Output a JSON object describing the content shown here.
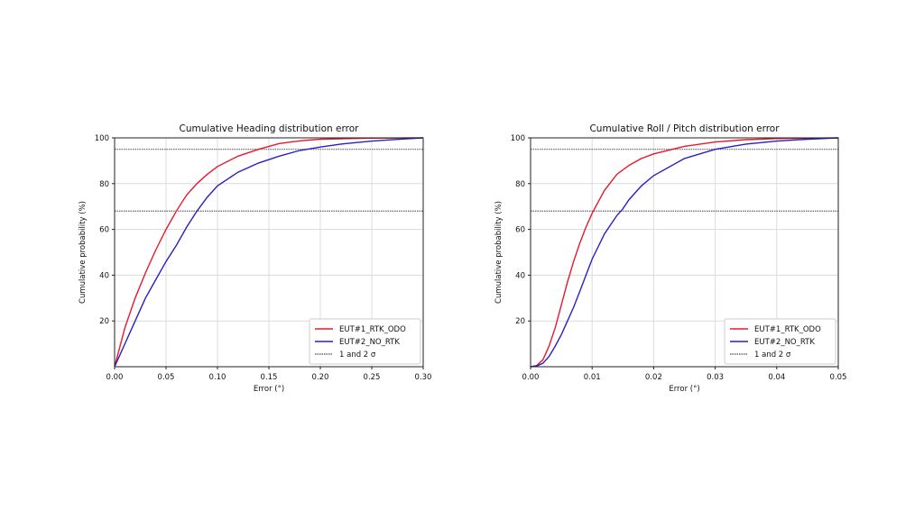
{
  "chart_data": [
    {
      "type": "line",
      "title": "Cumulative Heading distribution error",
      "xlabel": "Error (°)",
      "ylabel": "Cumulative probability (%)",
      "xlim": [
        0,
        0.3
      ],
      "ylim": [
        0,
        100
      ],
      "xticks": [
        "0.00",
        "0.05",
        "0.10",
        "0.15",
        "0.20",
        "0.25",
        "0.30"
      ],
      "xtick_values": [
        0,
        0.05,
        0.1,
        0.15,
        0.2,
        0.25,
        0.3
      ],
      "yticks": [
        "20",
        "40",
        "60",
        "80",
        "100"
      ],
      "ytick_values": [
        20,
        40,
        60,
        80,
        100
      ],
      "grid": true,
      "legend_position": "bottom-right",
      "series": [
        {
          "name": "EUT#1_RTK_ODO",
          "color": "#e8182c",
          "x": [
            0,
            0.01,
            0.02,
            0.03,
            0.04,
            0.05,
            0.06,
            0.07,
            0.08,
            0.09,
            0.1,
            0.12,
            0.14,
            0.16,
            0.18,
            0.2,
            0.25,
            0.3
          ],
          "y": [
            0,
            17,
            30,
            41,
            51,
            60,
            68,
            75,
            80,
            84,
            87.5,
            92,
            95,
            97.5,
            98.7,
            99.4,
            99.9,
            100
          ]
        },
        {
          "name": "EUT#2_NO_RTK",
          "color": "#2a1fc4",
          "x": [
            0,
            0.01,
            0.02,
            0.03,
            0.04,
            0.05,
            0.06,
            0.07,
            0.08,
            0.09,
            0.1,
            0.12,
            0.14,
            0.16,
            0.18,
            0.2,
            0.22,
            0.25,
            0.28,
            0.3
          ],
          "y": [
            0,
            10,
            20,
            30,
            38,
            46,
            53,
            61,
            68,
            74,
            79,
            85,
            89,
            92,
            94.5,
            96,
            97.3,
            98.6,
            99.5,
            100
          ]
        }
      ],
      "hlines": {
        "name": "1 and 2 σ",
        "color": "#666666",
        "values": [
          68,
          95
        ]
      }
    },
    {
      "type": "line",
      "title": "Cumulative Roll / Pitch distribution error",
      "xlabel": "Error (°)",
      "ylabel": "Cumulative probability (%)",
      "xlim": [
        0,
        0.05
      ],
      "ylim": [
        0,
        100
      ],
      "xticks": [
        "0.00",
        "0.01",
        "0.02",
        "0.03",
        "0.04",
        "0.05"
      ],
      "xtick_values": [
        0,
        0.01,
        0.02,
        0.03,
        0.04,
        0.05
      ],
      "yticks": [
        "20",
        "40",
        "60",
        "80",
        "100"
      ],
      "ytick_values": [
        20,
        40,
        60,
        80,
        100
      ],
      "grid": true,
      "legend_position": "bottom-right",
      "series": [
        {
          "name": "EUT#1_RTK_ODO",
          "color": "#e8182c",
          "x": [
            0,
            0.001,
            0.002,
            0.003,
            0.004,
            0.005,
            0.006,
            0.007,
            0.008,
            0.009,
            0.01,
            0.011,
            0.012,
            0.014,
            0.016,
            0.018,
            0.02,
            0.025,
            0.03,
            0.035,
            0.04,
            0.05
          ],
          "y": [
            0,
            0.5,
            3,
            9,
            17,
            27,
            37,
            46,
            54,
            61,
            67,
            72,
            77,
            84,
            88,
            91,
            93,
            96.3,
            98.2,
            99.2,
            99.7,
            100
          ]
        },
        {
          "name": "EUT#2_NO_RTK",
          "color": "#2a1fc4",
          "x": [
            0,
            0.001,
            0.002,
            0.003,
            0.004,
            0.005,
            0.006,
            0.007,
            0.008,
            0.009,
            0.01,
            0.012,
            0.014,
            0.015,
            0.016,
            0.018,
            0.02,
            0.025,
            0.03,
            0.035,
            0.04,
            0.045,
            0.05
          ],
          "y": [
            0,
            0.3,
            1.5,
            4.5,
            9,
            14,
            20,
            26,
            33,
            40,
            47,
            58,
            66,
            69,
            73,
            79,
            83.5,
            91,
            95,
            97.3,
            98.6,
            99.4,
            100
          ]
        }
      ],
      "hlines": {
        "name": "1 and 2 σ",
        "color": "#666666",
        "values": [
          68,
          95
        ]
      }
    }
  ]
}
